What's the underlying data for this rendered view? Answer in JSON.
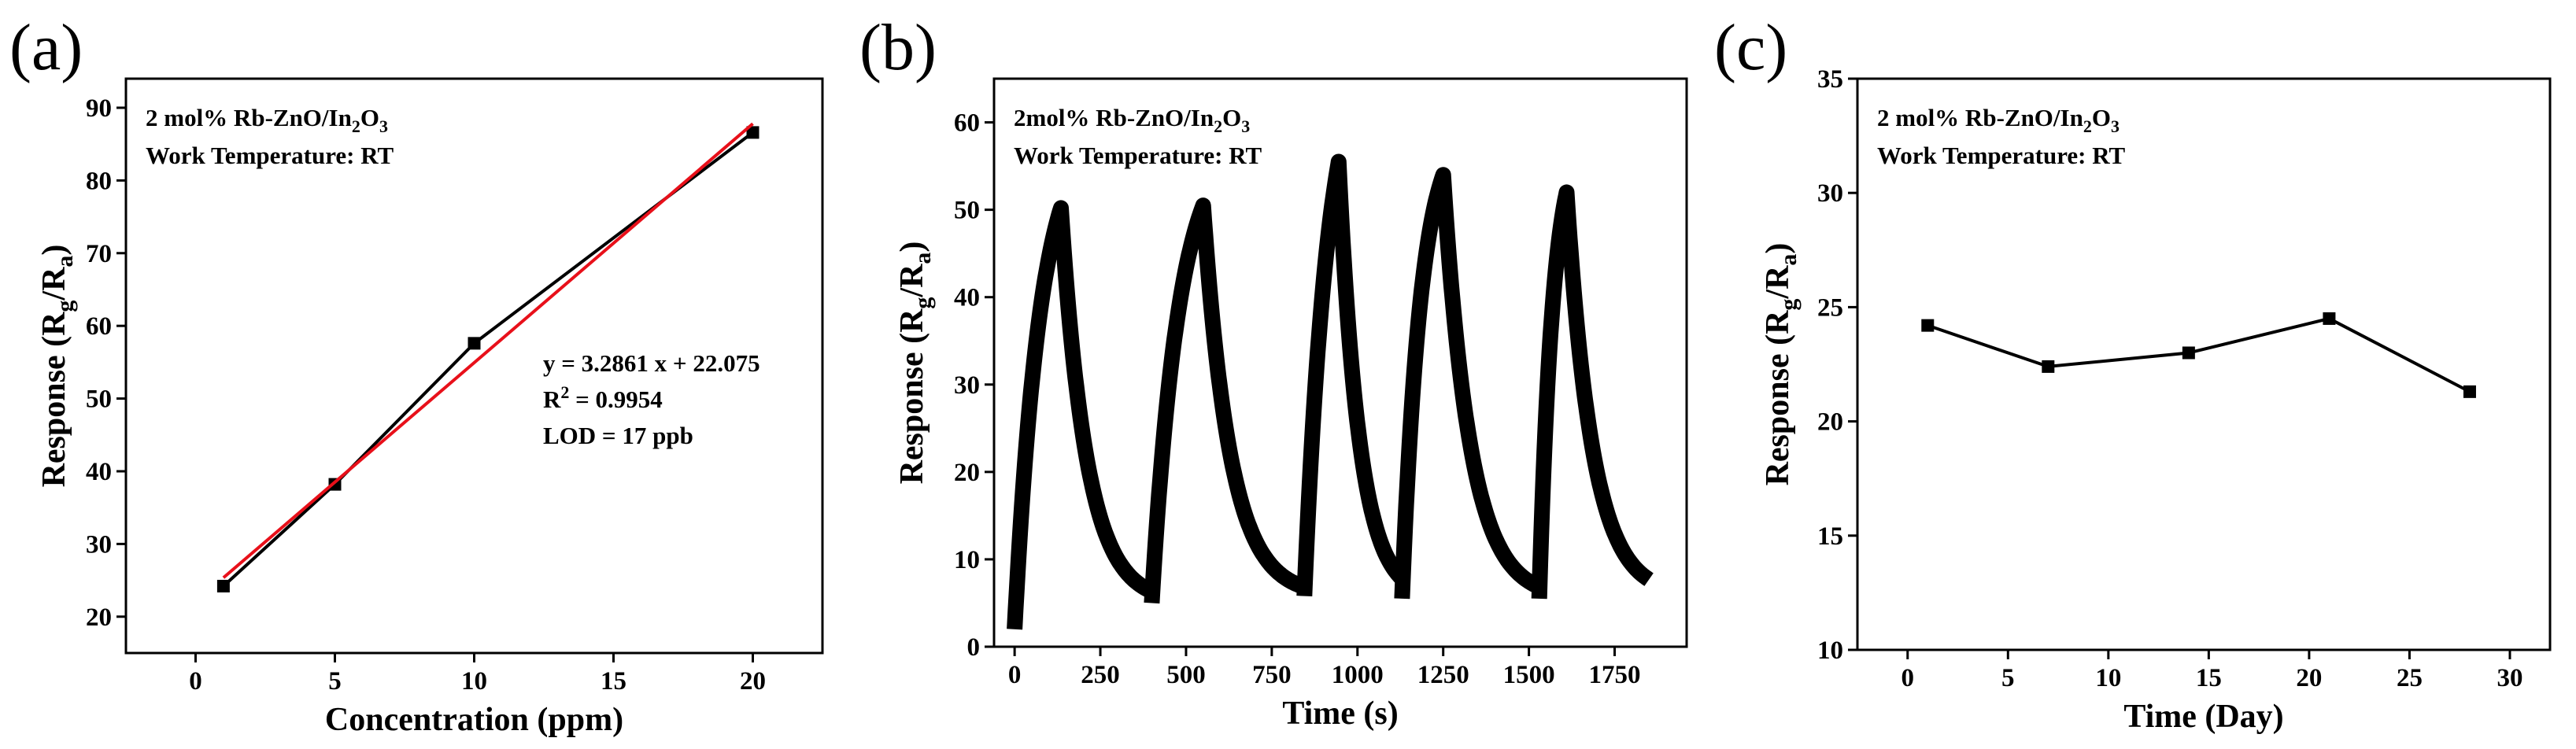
{
  "chart_data": [
    {
      "panel_label": "(a)",
      "type": "line",
      "xlabel": "Concentration (ppm)",
      "ylabel": {
        "main": "Response (R",
        "sub1": "g",
        "mid": "/R",
        "sub2": "a",
        "end": ")"
      },
      "xlim": [
        -2.5,
        22.5
      ],
      "ylim": [
        15,
        94
      ],
      "xticks": [
        0,
        5,
        10,
        15,
        20
      ],
      "yticks": [
        20,
        30,
        40,
        50,
        60,
        70,
        80,
        90
      ],
      "legend_lines": [
        {
          "main": "2 mol% Rb-ZnO/In",
          "sub": "2",
          "end": "O",
          "sub2": "3"
        },
        {
          "main": "Work Temperature: RT"
        }
      ],
      "series": [
        {
          "color": "#000000",
          "marker": "square",
          "x": [
            1,
            5,
            10,
            20
          ],
          "y": [
            24.2,
            38.2,
            57.6,
            86.6
          ]
        }
      ],
      "fit_line": {
        "color": "#e8101a",
        "x": [
          1,
          20
        ],
        "y": [
          25.36,
          87.8
        ]
      },
      "annotations": {
        "equation": "y = 3.2861 x + 22.075",
        "r2_prefix": "R",
        "r2_sup": "2",
        "r2_value": " = 0.9954",
        "lod": "LOD = 17 ppb"
      },
      "grid": false
    },
    {
      "panel_label": "(b)",
      "type": "line",
      "xlabel": "Time (s)",
      "ylabel": {
        "main": "Response (R",
        "sub1": "g",
        "mid": "/R",
        "sub2": "a",
        "end": ")"
      },
      "xlim": [
        -60,
        1960
      ],
      "ylim": [
        0,
        65
      ],
      "xticks": [
        0,
        250,
        500,
        750,
        1000,
        1250,
        1500,
        1750
      ],
      "yticks": [
        0,
        10,
        20,
        30,
        40,
        50,
        60
      ],
      "legend_lines": [
        {
          "main": "2mol% Rb-ZnO/In",
          "sub": "2",
          "end": "O",
          "sub2": "3"
        },
        {
          "main": "Work Temperature: RT"
        }
      ],
      "cycles": [
        {
          "t_on": 0,
          "t_off": 135,
          "t_end": 400,
          "base_start": 2,
          "peak": 50.2,
          "tau_resp": 75,
          "tau_rec": 75
        },
        {
          "t_on": 400,
          "t_off": 550,
          "t_end": 845,
          "base_start": 5,
          "peak": 50.5,
          "tau_resp": 80,
          "tau_rec": 78
        },
        {
          "t_on": 845,
          "t_off": 945,
          "t_end": 1130,
          "base_start": 5.8,
          "peak": 55.5,
          "tau_resp": 70,
          "tau_rec": 60
        },
        {
          "t_on": 1130,
          "t_off": 1250,
          "t_end": 1530,
          "base_start": 5.5,
          "peak": 54,
          "tau_resp": 55,
          "tau_rec": 78
        },
        {
          "t_on": 1530,
          "t_off": 1610,
          "t_end": 1850,
          "base_start": 5.5,
          "peak": 52,
          "tau_resp": 40,
          "tau_rec": 75
        }
      ],
      "series_color": "#000000",
      "grid": false
    },
    {
      "panel_label": "(c)",
      "type": "line",
      "xlabel": "Time (Day)",
      "ylabel": {
        "main": "Response (R",
        "sub1": "g",
        "mid": "/R",
        "sub2": "a",
        "end": ")"
      },
      "xlim": [
        -2.5,
        32
      ],
      "ylim": [
        10,
        35
      ],
      "xticks": [
        0,
        5,
        10,
        15,
        20,
        25,
        30
      ],
      "yticks": [
        10,
        15,
        20,
        25,
        30,
        35
      ],
      "legend_lines": [
        {
          "main": "2 mol% Rb-ZnO/In",
          "sub": "2",
          "end": "O",
          "sub2": "3"
        },
        {
          "main": "Work Temperature: RT"
        }
      ],
      "series": [
        {
          "color": "#000000",
          "marker": "square",
          "x": [
            1,
            7,
            14,
            21,
            28
          ],
          "y": [
            24.2,
            22.4,
            23,
            24.5,
            21.3
          ]
        }
      ],
      "grid": false
    }
  ]
}
